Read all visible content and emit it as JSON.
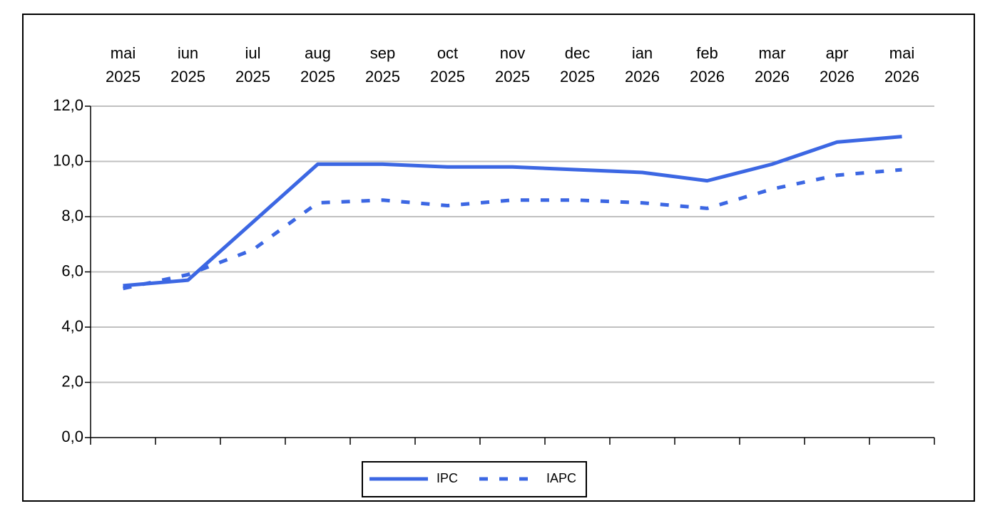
{
  "chart_data": {
    "type": "line",
    "categories": [
      "mai 2025",
      "iun 2025",
      "iul 2025",
      "aug 2025",
      "sep 2025",
      "oct 2025",
      "nov 2025",
      "dec 2025",
      "ian 2026",
      "feb 2026",
      "mar 2026",
      "apr 2026",
      "mai 2026"
    ],
    "series": [
      {
        "name": "IPC",
        "color": "#3c67e3",
        "dash": "solid",
        "values": [
          5.5,
          5.7,
          7.8,
          9.9,
          9.9,
          9.8,
          9.8,
          9.7,
          9.6,
          9.3,
          9.9,
          10.7,
          10.9
        ]
      },
      {
        "name": "IAPC",
        "color": "#3c67e3",
        "dash": "dashed",
        "values": [
          5.4,
          5.9,
          6.8,
          8.5,
          8.6,
          8.4,
          8.6,
          8.6,
          8.5,
          8.3,
          9.0,
          9.5,
          9.7
        ]
      }
    ],
    "ylim": [
      0,
      12
    ],
    "yticks": [
      {
        "value": 0,
        "label": "0,0"
      },
      {
        "value": 2,
        "label": "2,0"
      },
      {
        "value": 4,
        "label": "4,0"
      },
      {
        "value": 6,
        "label": "6,0"
      },
      {
        "value": 8,
        "label": "8,0"
      },
      {
        "value": 10,
        "label": "10,0"
      },
      {
        "value": 12,
        "label": "12,0"
      }
    ],
    "grid": true,
    "legend": "bottom"
  }
}
